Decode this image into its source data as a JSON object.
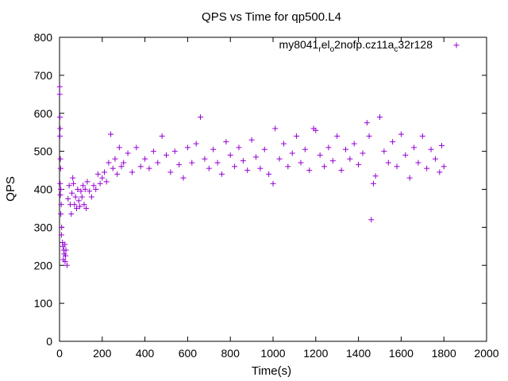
{
  "chart_data": {
    "type": "scatter",
    "title": "QPS vs Time for qp500.L4",
    "xlabel": "Time(s)",
    "ylabel": "QPS",
    "xlim": [
      0,
      2000
    ],
    "ylim": [
      0,
      800
    ],
    "xticks": [
      0,
      200,
      400,
      600,
      800,
      1000,
      1200,
      1400,
      1600,
      1800,
      2000
    ],
    "yticks": [
      0,
      100,
      200,
      300,
      400,
      500,
      600,
      700,
      800
    ],
    "grid": false,
    "legend_position": "top-right",
    "marker": "+",
    "series": [
      {
        "name": "my8041_rel_o2nofp.cz11a_c32r128",
        "legend_parts": [
          {
            "text": "my8041",
            "shift": "none"
          },
          {
            "text": "r",
            "shift": "sub"
          },
          {
            "text": "el",
            "shift": "none"
          },
          {
            "text": "o",
            "shift": "sub"
          },
          {
            "text": "2nofp.cz11a",
            "shift": "none"
          },
          {
            "text": "c",
            "shift": "sub"
          },
          {
            "text": "32r128",
            "shift": "none"
          }
        ],
        "color": "#9400d3",
        "values": [
          [
            1,
            670
          ],
          [
            1,
            650
          ],
          [
            2,
            590
          ],
          [
            3,
            560
          ],
          [
            2,
            540
          ],
          [
            4,
            480
          ],
          [
            5,
            455
          ],
          [
            3,
            415
          ],
          [
            6,
            400
          ],
          [
            4,
            385
          ],
          [
            8,
            360
          ],
          [
            6,
            335
          ],
          [
            10,
            300
          ],
          [
            9,
            280
          ],
          [
            14,
            260
          ],
          [
            16,
            250
          ],
          [
            20,
            240
          ],
          [
            22,
            230
          ],
          [
            18,
            215
          ],
          [
            25,
            255
          ],
          [
            26,
            210
          ],
          [
            28,
            225
          ],
          [
            30,
            240
          ],
          [
            35,
            200
          ],
          [
            40,
            375
          ],
          [
            45,
            410
          ],
          [
            50,
            360
          ],
          [
            55,
            335
          ],
          [
            58,
            390
          ],
          [
            62,
            430
          ],
          [
            65,
            415
          ],
          [
            70,
            360
          ],
          [
            75,
            380
          ],
          [
            80,
            350
          ],
          [
            85,
            400
          ],
          [
            90,
            370
          ],
          [
            95,
            355
          ],
          [
            100,
            395
          ],
          [
            105,
            380
          ],
          [
            110,
            410
          ],
          [
            115,
            360
          ],
          [
            120,
            400
          ],
          [
            125,
            350
          ],
          [
            130,
            420
          ],
          [
            140,
            395
          ],
          [
            150,
            380
          ],
          [
            160,
            410
          ],
          [
            170,
            400
          ],
          [
            180,
            440
          ],
          [
            190,
            415
          ],
          [
            200,
            430
          ],
          [
            210,
            445
          ],
          [
            220,
            420
          ],
          [
            230,
            470
          ],
          [
            240,
            545
          ],
          [
            250,
            455
          ],
          [
            260,
            480
          ],
          [
            270,
            440
          ],
          [
            280,
            510
          ],
          [
            290,
            460
          ],
          [
            300,
            470
          ],
          [
            320,
            495
          ],
          [
            340,
            445
          ],
          [
            360,
            510
          ],
          [
            380,
            460
          ],
          [
            400,
            480
          ],
          [
            420,
            455
          ],
          [
            440,
            500
          ],
          [
            460,
            470
          ],
          [
            480,
            540
          ],
          [
            500,
            490
          ],
          [
            520,
            445
          ],
          [
            540,
            500
          ],
          [
            560,
            465
          ],
          [
            580,
            430
          ],
          [
            600,
            510
          ],
          [
            620,
            470
          ],
          [
            640,
            520
          ],
          [
            660,
            590
          ],
          [
            680,
            480
          ],
          [
            700,
            455
          ],
          [
            720,
            505
          ],
          [
            740,
            470
          ],
          [
            760,
            440
          ],
          [
            780,
            525
          ],
          [
            800,
            490
          ],
          [
            820,
            460
          ],
          [
            840,
            510
          ],
          [
            860,
            475
          ],
          [
            880,
            450
          ],
          [
            900,
            530
          ],
          [
            920,
            485
          ],
          [
            940,
            455
          ],
          [
            960,
            505
          ],
          [
            980,
            440
          ],
          [
            1000,
            415
          ],
          [
            1010,
            560
          ],
          [
            1030,
            480
          ],
          [
            1050,
            520
          ],
          [
            1070,
            460
          ],
          [
            1090,
            495
          ],
          [
            1110,
            540
          ],
          [
            1130,
            470
          ],
          [
            1150,
            505
          ],
          [
            1170,
            450
          ],
          [
            1190,
            560
          ],
          [
            1200,
            555
          ],
          [
            1220,
            490
          ],
          [
            1240,
            460
          ],
          [
            1260,
            510
          ],
          [
            1280,
            475
          ],
          [
            1300,
            540
          ],
          [
            1320,
            450
          ],
          [
            1340,
            505
          ],
          [
            1360,
            480
          ],
          [
            1380,
            520
          ],
          [
            1400,
            465
          ],
          [
            1420,
            495
          ],
          [
            1440,
            575
          ],
          [
            1450,
            540
          ],
          [
            1460,
            320
          ],
          [
            1470,
            415
          ],
          [
            1480,
            435
          ],
          [
            1500,
            590
          ],
          [
            1520,
            500
          ],
          [
            1540,
            470
          ],
          [
            1560,
            525
          ],
          [
            1580,
            460
          ],
          [
            1600,
            545
          ],
          [
            1620,
            490
          ],
          [
            1640,
            430
          ],
          [
            1660,
            510
          ],
          [
            1680,
            470
          ],
          [
            1700,
            540
          ],
          [
            1720,
            455
          ],
          [
            1740,
            505
          ],
          [
            1760,
            480
          ],
          [
            1780,
            445
          ],
          [
            1790,
            515
          ],
          [
            1800,
            460
          ]
        ]
      }
    ]
  }
}
